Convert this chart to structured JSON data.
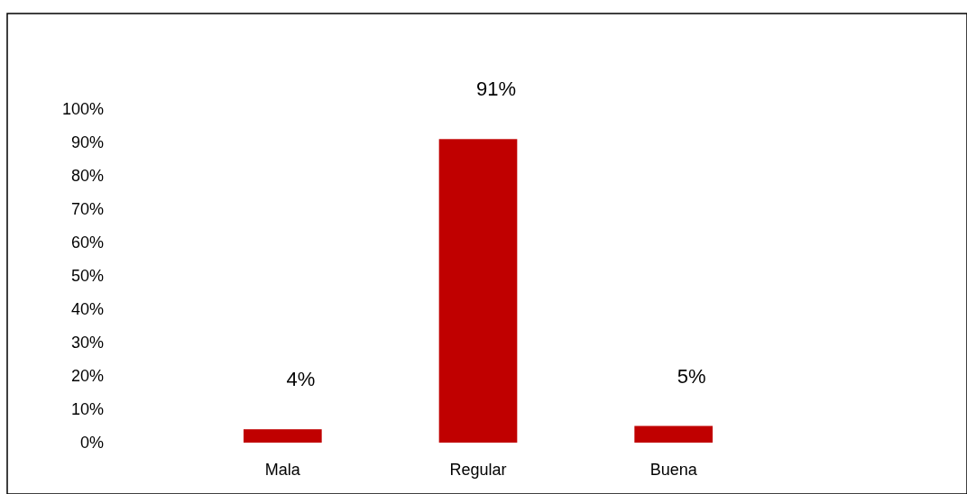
{
  "chart_data": {
    "type": "bar",
    "categories": [
      "Mala",
      "Regular",
      "Buena"
    ],
    "values": [
      4,
      91,
      5
    ],
    "color": "#c00000",
    "value_labels": [
      "4%",
      "91%",
      "5%"
    ],
    "ylim": [
      0,
      100
    ],
    "yticks": [
      {
        "value": 0,
        "label": "0%"
      },
      {
        "value": 10,
        "label": "10%"
      },
      {
        "value": 20,
        "label": "20%"
      },
      {
        "value": 30,
        "label": "30%"
      },
      {
        "value": 40,
        "label": "40%"
      },
      {
        "value": 50,
        "label": "50%"
      },
      {
        "value": 60,
        "label": "60%"
      },
      {
        "value": 70,
        "label": "70%"
      },
      {
        "value": 80,
        "label": "80%"
      },
      {
        "value": 90,
        "label": "90%"
      },
      {
        "value": 100,
        "label": "100%"
      }
    ],
    "grid": false
  }
}
